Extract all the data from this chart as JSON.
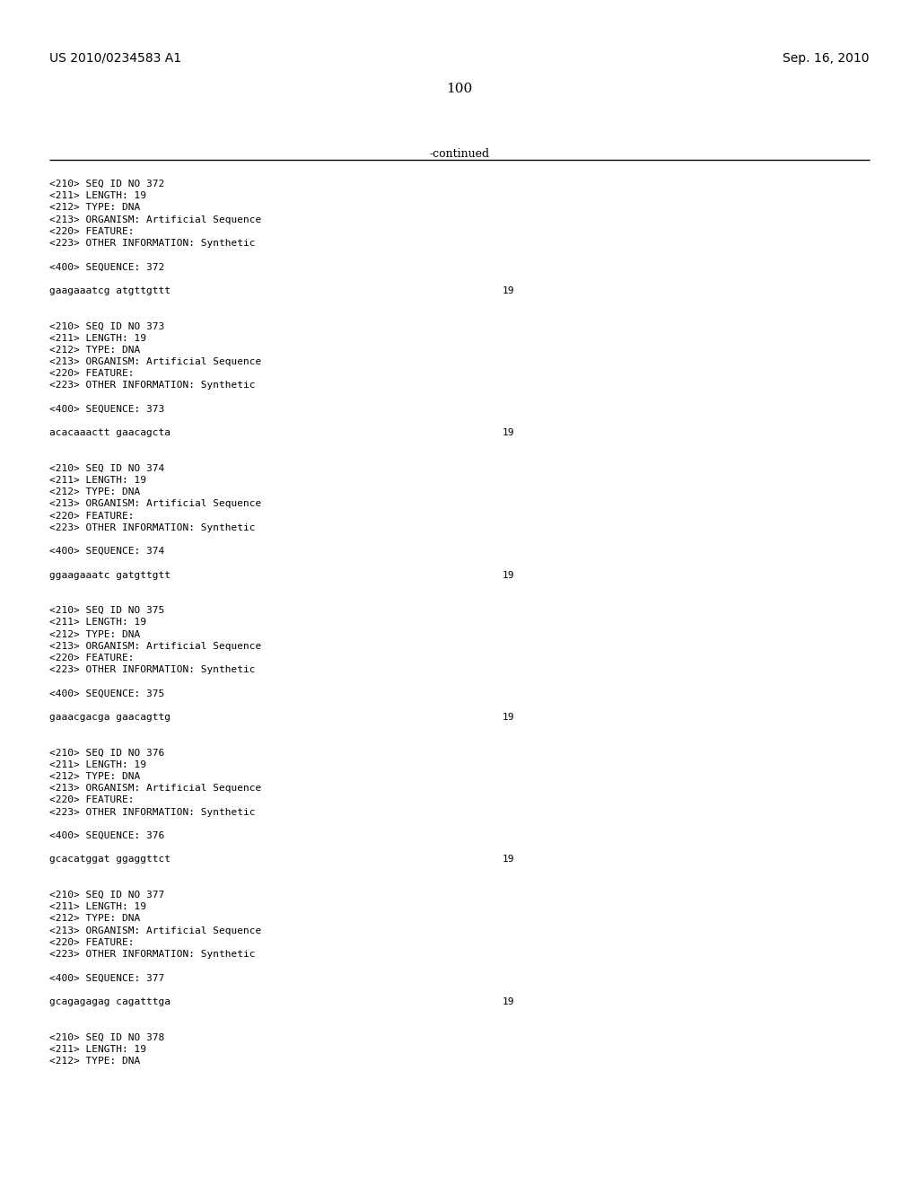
{
  "bg_color": "#ffffff",
  "header_left": "US 2010/0234583 A1",
  "header_right": "Sep. 16, 2010",
  "page_number": "100",
  "continued_text": "-continued",
  "line_color": "#000000",
  "font_size_header": 10.0,
  "font_size_page": 11.0,
  "font_size_continued": 9.0,
  "font_size_mono": 8.0,
  "entries": [
    {
      "seq_id": "372",
      "length": "19",
      "type": "DNA",
      "organism": "Artificial Sequence",
      "other_info": "Synthetic",
      "sequence": "gaagaaatcg atgttgttt",
      "seq_len": "19"
    },
    {
      "seq_id": "373",
      "length": "19",
      "type": "DNA",
      "organism": "Artificial Sequence",
      "other_info": "Synthetic",
      "sequence": "acacaaactt gaacagcta",
      "seq_len": "19"
    },
    {
      "seq_id": "374",
      "length": "19",
      "type": "DNA",
      "organism": "Artificial Sequence",
      "other_info": "Synthetic",
      "sequence": "ggaagaaatc gatgttgtt",
      "seq_len": "19"
    },
    {
      "seq_id": "375",
      "length": "19",
      "type": "DNA",
      "organism": "Artificial Sequence",
      "other_info": "Synthetic",
      "sequence": "gaaacgacga gaacagttg",
      "seq_len": "19"
    },
    {
      "seq_id": "376",
      "length": "19",
      "type": "DNA",
      "organism": "Artificial Sequence",
      "other_info": "Synthetic",
      "sequence": "gcacatggat ggaggttct",
      "seq_len": "19"
    },
    {
      "seq_id": "377",
      "length": "19",
      "type": "DNA",
      "organism": "Artificial Sequence",
      "other_info": "Synthetic",
      "sequence": "gcagagagag cagatttga",
      "seq_len": "19"
    },
    {
      "seq_id": "378",
      "length": "19",
      "type": "DNA",
      "organism": "",
      "other_info": "",
      "sequence": "",
      "seq_len": ""
    }
  ]
}
